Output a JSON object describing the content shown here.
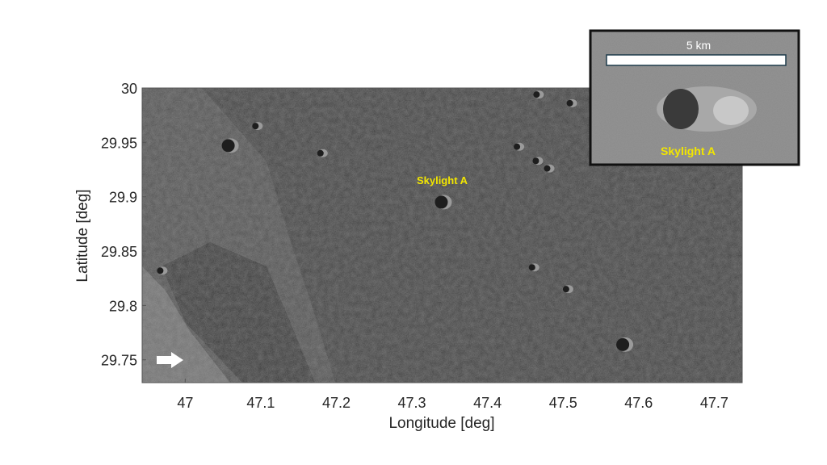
{
  "chart_data": {
    "type": "heatmap",
    "title": "",
    "xlabel": "Longitude [deg]",
    "ylabel": "Latitude [deg]",
    "xlim": [
      46.943,
      47.737
    ],
    "ylim": [
      29.729,
      30.0
    ],
    "xticks": [
      47,
      47.1,
      47.2,
      47.3,
      47.4,
      47.5,
      47.6,
      47.7
    ],
    "xtick_labels": [
      "47",
      "47.1",
      "47.2",
      "47.3",
      "47.4",
      "47.5",
      "47.6",
      "47.7"
    ],
    "yticks": [
      29.75,
      29.8,
      29.85,
      29.9,
      29.95,
      30
    ],
    "ytick_labels": [
      "29.75",
      "29.8",
      "29.85",
      "29.9",
      "29.95",
      "30"
    ],
    "grid": false,
    "annotations": [
      {
        "text": "Skylight A",
        "x": 47.34,
        "y": 29.91,
        "color": "#f2e600"
      }
    ],
    "features": [
      {
        "x": 47.34,
        "y": 29.895,
        "label": "Skylight A"
      },
      {
        "x": 47.058,
        "y": 29.947
      },
      {
        "x": 47.094,
        "y": 29.965
      },
      {
        "x": 47.18,
        "y": 29.94
      },
      {
        "x": 47.466,
        "y": 29.994
      },
      {
        "x": 47.51,
        "y": 29.986
      },
      {
        "x": 47.44,
        "y": 29.946
      },
      {
        "x": 47.465,
        "y": 29.933
      },
      {
        "x": 47.48,
        "y": 29.926
      },
      {
        "x": 47.46,
        "y": 29.835
      },
      {
        "x": 47.505,
        "y": 29.815
      },
      {
        "x": 47.58,
        "y": 29.764
      },
      {
        "x": 46.968,
        "y": 29.832
      }
    ],
    "arrow": {
      "x": 46.99,
      "y": 29.747,
      "direction": "right",
      "color": "#ffffff"
    }
  },
  "inset": {
    "scale_label": "5 km",
    "caption": "Skylight A",
    "caption_color": "#f2e600"
  }
}
